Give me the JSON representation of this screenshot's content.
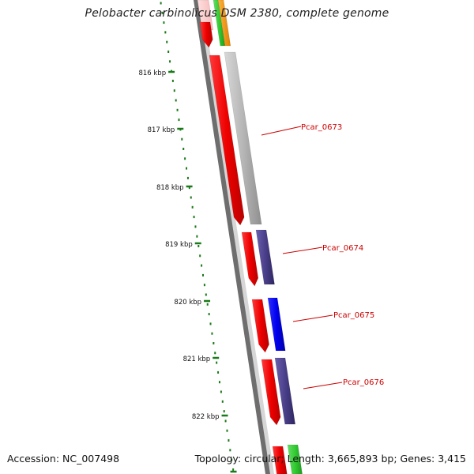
{
  "title": "Pelobacter carbinolicus DSM 2380, complete genome",
  "accession": "Accession: NC_007498",
  "summary": "Topology: circular; Length: 3,665,893 bp; Genes: 3,415",
  "tick_labels": [
    "816 kbp",
    "817 kbp",
    "818 kbp",
    "819 kbp",
    "820 kbp",
    "821 kbp",
    "822 kbp"
  ],
  "gene_labels": [
    "Pcar_0673",
    "Pcar_0674",
    "Pcar_0675",
    "Pcar_0676"
  ],
  "colors": {
    "ruler_dots": "#1a7a1a",
    "gene_label": "#cc0000",
    "backbone_dark": "#6e6e6e",
    "backbone_light": "#d4d4d4",
    "cds_red": "#ee0000",
    "cds_blue": "#0000ee",
    "cds_navy": "#4a3f8a",
    "cds_gray": "#b4b4b4",
    "cds_green": "#33cc33",
    "cds_orange": "#ff9900",
    "cds_pink": "#ffcccc"
  }
}
